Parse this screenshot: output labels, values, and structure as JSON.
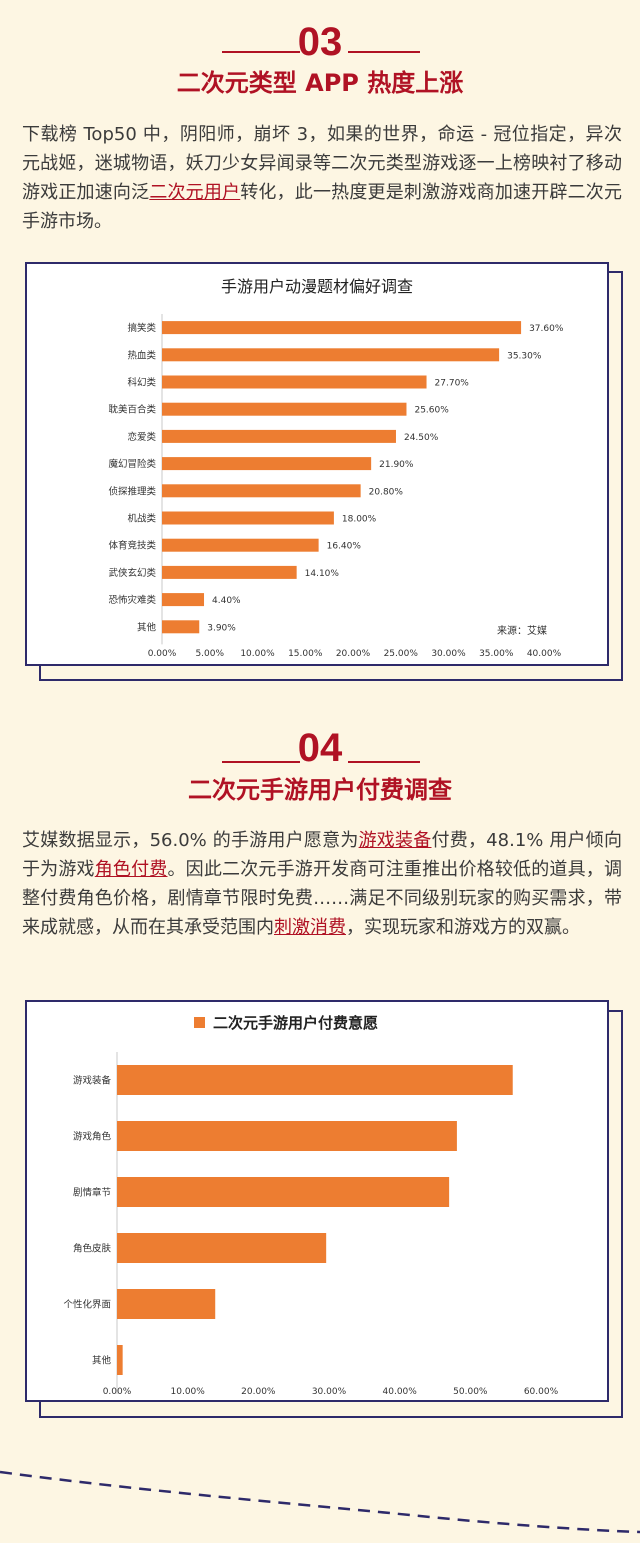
{
  "section3": {
    "number": "03",
    "title": "二次元类型 APP 热度上涨",
    "para_parts": [
      {
        "t": "下载榜 Top50 中，阴阳师，崩坏 3，如果的世界，命运 - 冠位指定，异次元战姬，迷城物语，妖刀少女异闻录等二次元类型游戏逐一上榜映衬了移动游戏正加速向泛"
      },
      {
        "t": "二次元用户",
        "hl": true
      },
      {
        "t": "转化，此一热度更是刺激游戏商加速开辟二次元手游市场。"
      }
    ]
  },
  "section4": {
    "number": "04",
    "title": "二次元手游用户付费调查",
    "para_parts": [
      {
        "t": "艾媒数据显示，56.0% 的手游用户愿意为"
      },
      {
        "t": "游戏装备",
        "hl": true
      },
      {
        "t": "付费，48.1% 用户倾向于为游戏"
      },
      {
        "t": "角色付费",
        "hl": true
      },
      {
        "t": "。因此二次元手游开发商可注重推出价格较低的道具，调整付费角色价格，剧情章节限时免费……满足不同级别玩家的购买需求，带来成就感，从而在其承受范围内"
      },
      {
        "t": "刺激消费",
        "hl": true
      },
      {
        "t": "，实现玩家和游戏方的双赢。"
      }
    ]
  },
  "colors": {
    "accent": "#b01224",
    "bar": "#ed7d31",
    "frame": "#2e2a6a"
  },
  "chart_data": [
    {
      "type": "bar",
      "orientation": "horizontal",
      "title": "手游用户动漫题材偏好调查",
      "categories": [
        "搞笑类",
        "热血类",
        "科幻类",
        "耽美百合类",
        "恋爱类",
        "魔幻冒险类",
        "侦探推理类",
        "机战类",
        "体育竞技类",
        "武侠玄幻类",
        "恐怖灾难类",
        "其他"
      ],
      "values": [
        37.6,
        35.3,
        27.7,
        25.6,
        24.5,
        21.9,
        20.8,
        18.0,
        16.4,
        14.1,
        4.4,
        3.9
      ],
      "value_labels": [
        "37.60%",
        "35.30%",
        "27.70%",
        "25.60%",
        "24.50%",
        "21.90%",
        "20.80%",
        "18.00%",
        "16.40%",
        "14.10%",
        "4.40%",
        "3.90%"
      ],
      "xlim": [
        0,
        40
      ],
      "xticks": [
        "0.00%",
        "5.00%",
        "10.00%",
        "15.00%",
        "20.00%",
        "25.00%",
        "30.00%",
        "35.00%",
        "40.00%"
      ],
      "source": "来源：艾媒",
      "grid": false
    },
    {
      "type": "bar",
      "orientation": "horizontal",
      "title": "二次元手游用户付费意愿",
      "categories": [
        "游戏装备",
        "游戏角色",
        "剧情章节",
        "角色皮肤",
        "个性化界面",
        "其他"
      ],
      "values": [
        56.0,
        48.1,
        47.0,
        29.6,
        13.9,
        0.8
      ],
      "xlim": [
        0,
        60
      ],
      "xticks": [
        "0.00%",
        "10.00%",
        "20.00%",
        "30.00%",
        "40.00%",
        "50.00%",
        "60.00%"
      ],
      "legend": "top-center",
      "grid": false
    }
  ]
}
